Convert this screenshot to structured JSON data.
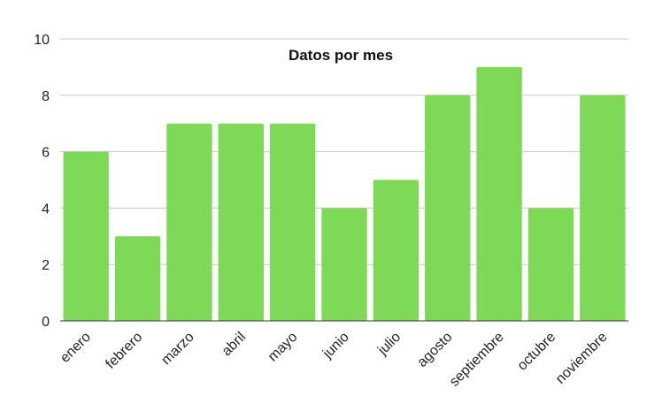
{
  "chart_data": {
    "type": "bar",
    "title": "Datos por mes",
    "xlabel": "",
    "ylabel": "",
    "categories": [
      "enero",
      "febrero",
      "marzo",
      "abril",
      "mayo",
      "junio",
      "julio",
      "agosto",
      "septiembre",
      "octubre",
      "noviembre"
    ],
    "values": [
      6,
      3,
      7,
      7,
      7,
      4,
      5,
      8,
      9,
      4,
      8
    ],
    "ylim": [
      0,
      10
    ],
    "yticks": [
      "0",
      "2",
      "4",
      "6",
      "8",
      "10"
    ],
    "grid": true,
    "legend": "none",
    "bar_color": "#7ED957"
  }
}
